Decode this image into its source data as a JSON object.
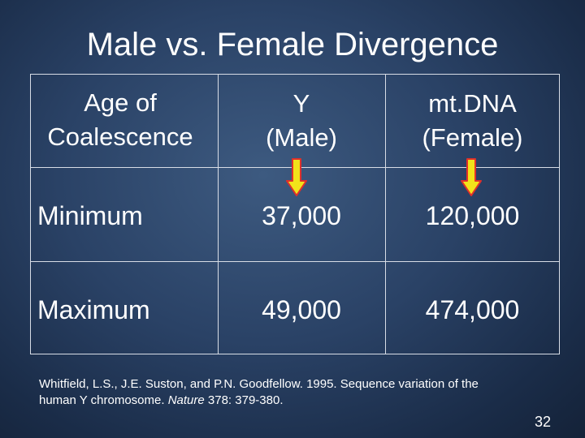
{
  "slide": {
    "title": "Male vs. Female Divergence",
    "page_number": "32"
  },
  "table": {
    "header": {
      "col1_line1": "Age of",
      "col1_line2": "Coalescence",
      "col2_line1": "Y",
      "col2_line2": "(Male)",
      "col3_line1": "mt.DNA",
      "col3_line2": "(Female)"
    },
    "rows": [
      {
        "label": "Minimum",
        "y_male": "37,000",
        "mtdna_female": "120,000"
      },
      {
        "label": "Maximum",
        "y_male": "49,000",
        "mtdna_female": "474,000"
      }
    ]
  },
  "arrows": {
    "color_fill": "#f2e21a",
    "color_outline": "#e0302a",
    "icon": "down-arrow-icon"
  },
  "citation": {
    "part1": "Whitfield, L.S., J.E. Suston, and P.N. Goodfellow. 1995. Sequence variation of the human Y chromosome. ",
    "journal": "Nature",
    "part2": " 378: 379-380."
  }
}
